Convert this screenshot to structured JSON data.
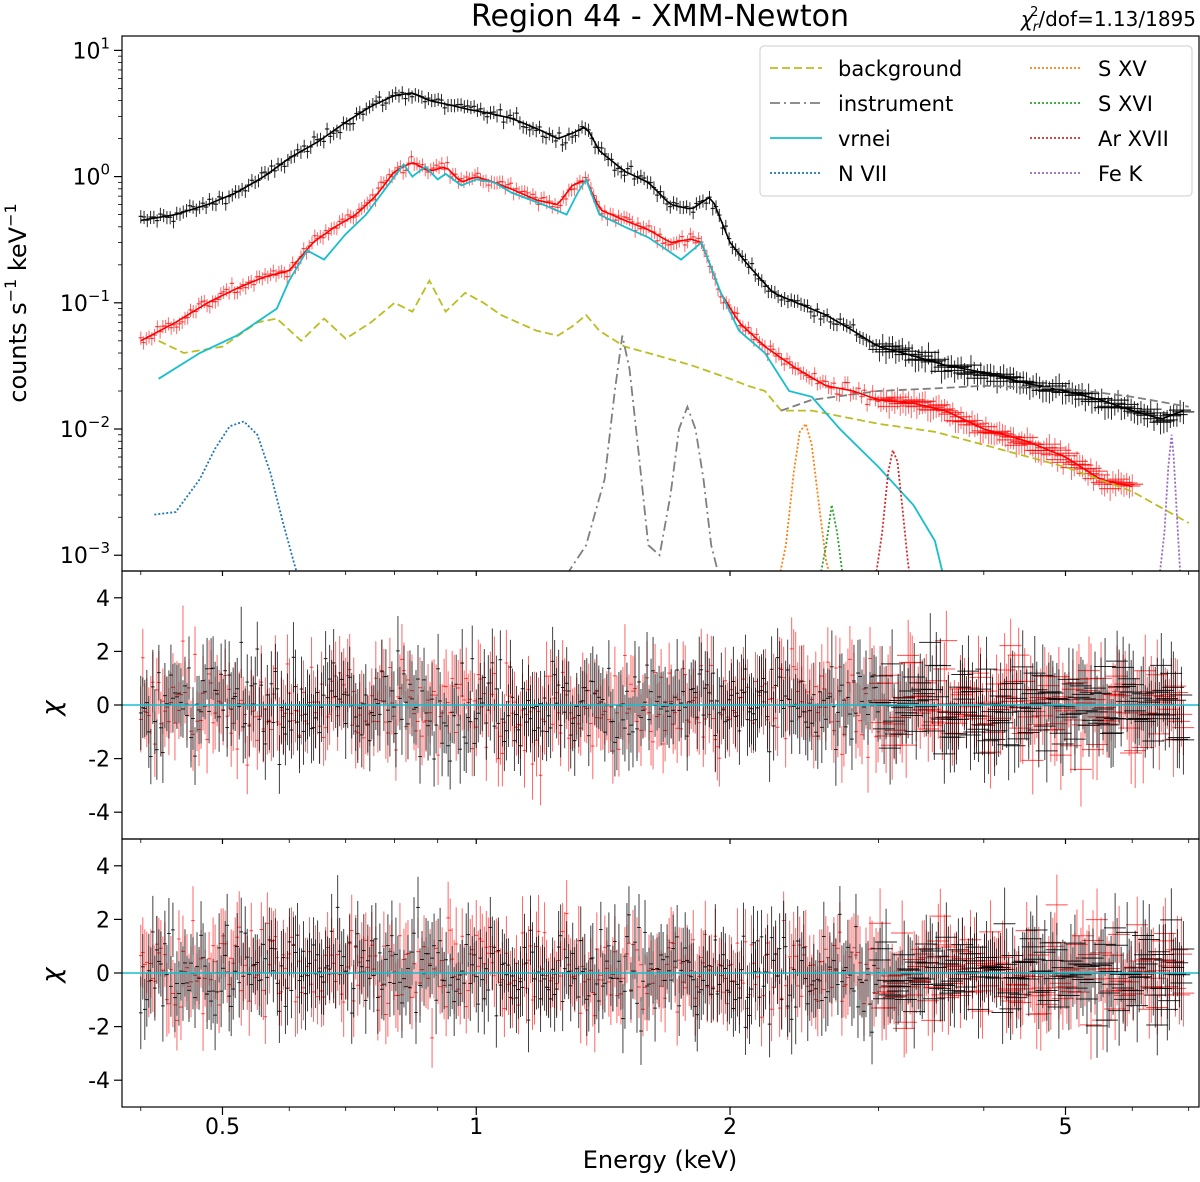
{
  "chart_data": {
    "type": "line",
    "title": "Region 44 - XMM-Newton",
    "stat": {
      "chi_symbol": "χ",
      "sub": "r",
      "sup": "2",
      "suffix": "/dof=1.13/1895"
    },
    "xlabel": "Energy (keV)",
    "xscale": "log",
    "xlim": [
      0.38,
      7.2
    ],
    "xticks": [
      0.5,
      1,
      2,
      5
    ],
    "xtick_labels": [
      "0.5",
      "1",
      "2",
      "5"
    ],
    "colors": {
      "data_black": "#000000",
      "data_red": "#ff0000",
      "background": "#bcbd22",
      "instrument": "#7f7f7f",
      "vrnei": "#17becf",
      "N VII": "#1f77b4",
      "S XV": "#ff7f0e",
      "S XVI": "#2ca02c",
      "Ar XVII": "#d62728",
      "Fe K": "#9467bd",
      "zero_line": "#17becf"
    },
    "spectrum_panel": {
      "ylabel": {
        "base": "counts s",
        "sup1": "−1",
        "mid": " keV",
        "sup2": "−1"
      },
      "yscale": "log",
      "ylim": [
        0.00075,
        13
      ],
      "yticks": [
        0.001,
        0.01,
        0.1,
        1,
        10
      ],
      "ytick_labels": [
        {
          "base": "10",
          "exp": "−3"
        },
        {
          "base": "10",
          "exp": "−2"
        },
        {
          "base": "10",
          "exp": "−1"
        },
        {
          "base": "10",
          "exp": "0"
        },
        {
          "base": "10",
          "exp": "1"
        }
      ],
      "legend": {
        "placement": "top-right",
        "entries": [
          {
            "label": "background",
            "style": "dashed",
            "color_key": "background"
          },
          {
            "label": "instrument",
            "style": "dashdot",
            "color_key": "instrument"
          },
          {
            "label": "vrnei",
            "style": "solid",
            "color_key": "vrnei"
          },
          {
            "label": "N VII",
            "style": "dotted",
            "color_key": "N VII"
          },
          {
            "label": "S XV",
            "style": "dotted",
            "color_key": "S XV"
          },
          {
            "label": "S XVI",
            "style": "dotted",
            "color_key": "S XVI"
          },
          {
            "label": "Ar XVII",
            "style": "dotted",
            "color_key": "Ar XVII"
          },
          {
            "label": "Fe K",
            "style": "dotted",
            "color_key": "Fe K"
          }
        ]
      },
      "series": [
        {
          "name": "background",
          "style": "dashed",
          "color_key": "background",
          "x": [
            0.42,
            0.45,
            0.5,
            0.55,
            0.58,
            0.62,
            0.66,
            0.7,
            0.75,
            0.8,
            0.84,
            0.88,
            0.92,
            0.97,
            1.02,
            1.07,
            1.12,
            1.18,
            1.25,
            1.3,
            1.35,
            1.4,
            1.5,
            1.6,
            1.8,
            2.0,
            2.1,
            2.2,
            2.3,
            2.5,
            3.0,
            3.5,
            4.0,
            5.0,
            6.0,
            7.0
          ],
          "y": [
            0.05,
            0.04,
            0.045,
            0.07,
            0.075,
            0.05,
            0.075,
            0.052,
            0.07,
            0.1,
            0.085,
            0.15,
            0.085,
            0.12,
            0.1,
            0.08,
            0.07,
            0.06,
            0.055,
            0.065,
            0.08,
            0.06,
            0.045,
            0.04,
            0.032,
            0.025,
            0.022,
            0.02,
            0.014,
            0.014,
            0.011,
            0.0095,
            0.0075,
            0.005,
            0.0032,
            0.0018
          ]
        },
        {
          "name": "background (model 2)",
          "style": "dashed",
          "color_key": "instrument",
          "x": [
            2.3,
            2.5,
            3.0,
            3.5,
            4.0,
            5.0,
            6.0,
            7.0
          ],
          "y": [
            0.014,
            0.017,
            0.02,
            0.021,
            0.022,
            0.021,
            0.018,
            0.015
          ]
        },
        {
          "name": "vrnei",
          "style": "solid",
          "color_key": "vrnei",
          "x": [
            0.42,
            0.47,
            0.52,
            0.58,
            0.6,
            0.63,
            0.66,
            0.7,
            0.74,
            0.78,
            0.82,
            0.84,
            0.87,
            0.9,
            0.92,
            0.96,
            1.0,
            1.05,
            1.1,
            1.2,
            1.28,
            1.32,
            1.35,
            1.4,
            1.5,
            1.6,
            1.75,
            1.85,
            1.95,
            2.05,
            2.2,
            2.35,
            2.5,
            2.7,
            3.0,
            3.3,
            3.5,
            3.6
          ],
          "y": [
            0.025,
            0.04,
            0.055,
            0.09,
            0.15,
            0.26,
            0.22,
            0.35,
            0.5,
            0.8,
            1.25,
            1.0,
            1.2,
            0.95,
            1.05,
            0.85,
            0.95,
            0.9,
            0.75,
            0.6,
            0.5,
            0.75,
            0.95,
            0.5,
            0.4,
            0.33,
            0.22,
            0.3,
            0.12,
            0.06,
            0.04,
            0.02,
            0.018,
            0.01,
            0.005,
            0.0025,
            0.0013,
            0.0006
          ]
        },
        {
          "name": "instrument",
          "style": "dashdot",
          "color_key": "instrument",
          "x": [
            1.28,
            1.35,
            1.42,
            1.46,
            1.49,
            1.52,
            1.56,
            1.6,
            1.65,
            1.7,
            1.74,
            1.78,
            1.82,
            1.86,
            1.9,
            1.95
          ],
          "y": [
            0.0007,
            0.0012,
            0.004,
            0.02,
            0.055,
            0.03,
            0.006,
            0.0012,
            0.001,
            0.003,
            0.01,
            0.015,
            0.01,
            0.004,
            0.0012,
            0.0006
          ]
        },
        {
          "name": "N VII",
          "style": "dotted",
          "color_key": "N VII",
          "x": [
            0.415,
            0.44,
            0.47,
            0.49,
            0.51,
            0.53,
            0.55,
            0.57,
            0.59,
            0.61,
            0.63
          ],
          "y": [
            0.0021,
            0.0022,
            0.004,
            0.007,
            0.0105,
            0.0115,
            0.009,
            0.0045,
            0.0018,
            0.0008,
            0.0004
          ]
        },
        {
          "name": "S XV",
          "style": "dotted",
          "color_key": "S XV",
          "x": [
            2.28,
            2.33,
            2.38,
            2.42,
            2.46,
            2.5,
            2.55,
            2.6,
            2.66
          ],
          "y": [
            0.0006,
            0.0012,
            0.0045,
            0.0095,
            0.011,
            0.0075,
            0.0025,
            0.0009,
            0.0005
          ]
        },
        {
          "name": "S XVI",
          "style": "dotted",
          "color_key": "S XVI",
          "x": [
            2.55,
            2.6,
            2.64,
            2.68,
            2.72,
            2.76
          ],
          "y": [
            0.0006,
            0.0012,
            0.0025,
            0.0015,
            0.0007,
            0.0004
          ]
        },
        {
          "name": "Ar XVII",
          "style": "dotted",
          "color_key": "Ar XVII",
          "x": [
            2.97,
            3.03,
            3.08,
            3.12,
            3.16,
            3.2,
            3.25,
            3.3
          ],
          "y": [
            0.0006,
            0.0015,
            0.0045,
            0.0068,
            0.0055,
            0.0025,
            0.0009,
            0.0004
          ]
        },
        {
          "name": "Fe K",
          "style": "dotted",
          "color_key": "Fe K",
          "x": [
            6.45,
            6.55,
            6.62,
            6.68,
            6.72,
            6.78,
            6.85
          ],
          "y": [
            0.0006,
            0.0015,
            0.005,
            0.009,
            0.006,
            0.002,
            0.0006
          ]
        },
        {
          "name": "black data",
          "style": "errorbars",
          "color_key": "data_black",
          "x": [
            0.4,
            0.44,
            0.48,
            0.52,
            0.56,
            0.6,
            0.65,
            0.7,
            0.75,
            0.8,
            0.84,
            0.88,
            0.93,
            0.98,
            1.03,
            1.1,
            1.18,
            1.25,
            1.3,
            1.35,
            1.4,
            1.5,
            1.6,
            1.7,
            1.8,
            1.9,
            2.0,
            2.1,
            2.25,
            2.4,
            2.6,
            2.8,
            3.0,
            3.3,
            3.6,
            4.0,
            4.5,
            5.0,
            5.5,
            6.0,
            6.5,
            6.9
          ],
          "y": [
            0.45,
            0.5,
            0.6,
            0.75,
            1.0,
            1.4,
            1.9,
            2.7,
            3.6,
            4.4,
            4.6,
            4.0,
            3.7,
            3.4,
            3.2,
            2.9,
            2.4,
            2.0,
            2.2,
            2.5,
            1.6,
            1.1,
            0.9,
            0.6,
            0.55,
            0.7,
            0.3,
            0.2,
            0.12,
            0.1,
            0.08,
            0.06,
            0.045,
            0.038,
            0.032,
            0.028,
            0.023,
            0.02,
            0.017,
            0.014,
            0.012,
            0.014
          ]
        },
        {
          "name": "red data",
          "style": "errorbars",
          "color_key": "data_red",
          "x": [
            0.4,
            0.44,
            0.48,
            0.52,
            0.56,
            0.6,
            0.64,
            0.68,
            0.72,
            0.76,
            0.8,
            0.84,
            0.88,
            0.92,
            0.96,
            1.0,
            1.05,
            1.1,
            1.18,
            1.25,
            1.3,
            1.35,
            1.4,
            1.5,
            1.6,
            1.7,
            1.8,
            1.85,
            1.95,
            2.05,
            2.2,
            2.4,
            2.6,
            2.8,
            3.0,
            3.3,
            3.6,
            4.0,
            4.5,
            5.0,
            5.5,
            6.0
          ],
          "y": [
            0.05,
            0.07,
            0.1,
            0.13,
            0.16,
            0.18,
            0.3,
            0.4,
            0.5,
            0.7,
            1.1,
            1.3,
            1.1,
            1.2,
            0.9,
            1.0,
            0.9,
            0.8,
            0.65,
            0.6,
            0.85,
            0.95,
            0.55,
            0.45,
            0.38,
            0.3,
            0.32,
            0.3,
            0.12,
            0.07,
            0.045,
            0.03,
            0.022,
            0.02,
            0.017,
            0.016,
            0.014,
            0.01,
            0.008,
            0.006,
            0.004,
            0.0035
          ]
        }
      ]
    },
    "residual_panels": [
      {
        "ylabel": "χ",
        "ylim": [
          -5,
          5
        ],
        "yticks": [
          -4,
          -2,
          0,
          2,
          4
        ],
        "ytick_labels": [
          "-4",
          "-2",
          "0",
          "2",
          "4"
        ],
        "zero_line": 0,
        "series": [
          "black data residuals",
          "red data residuals"
        ]
      },
      {
        "ylabel": "χ",
        "ylim": [
          -5,
          5
        ],
        "yticks": [
          -4,
          -2,
          0,
          2,
          4
        ],
        "ytick_labels": [
          "-4",
          "-2",
          "0",
          "2",
          "4"
        ],
        "zero_line": 0,
        "series": [
          "black data residuals",
          "red data residuals"
        ]
      }
    ]
  }
}
